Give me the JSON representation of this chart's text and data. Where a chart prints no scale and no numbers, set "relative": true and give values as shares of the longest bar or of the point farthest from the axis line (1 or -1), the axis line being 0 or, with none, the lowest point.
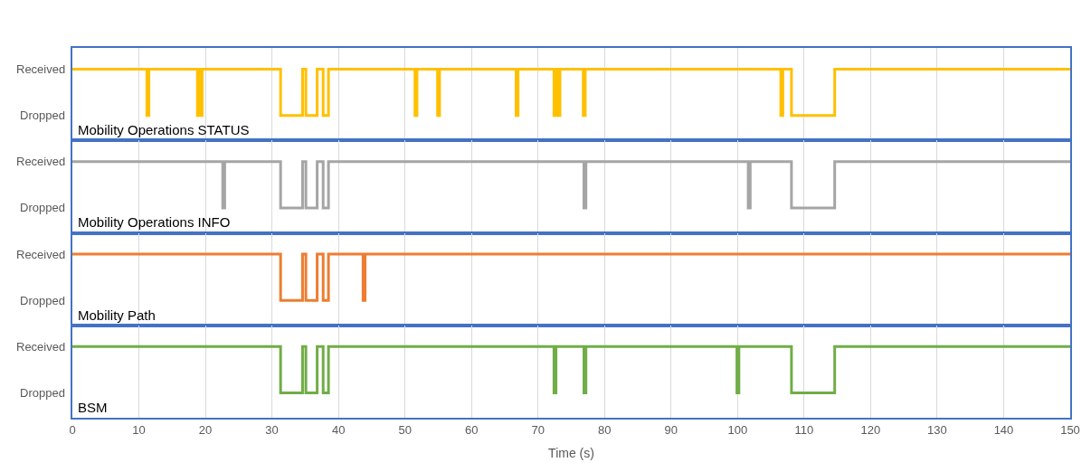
{
  "chart_data": [
    {
      "type": "step",
      "relative": true,
      "title": "Mobility Operations STATUS",
      "x": [
        0,
        11.2,
        11.5,
        18.8,
        19.0,
        19.3,
        19.5,
        31.3,
        34.6,
        35.1,
        36.8,
        37.7,
        38.5,
        51.5,
        51.8,
        54.9,
        55.2,
        66.7,
        67.0,
        72.4,
        72.7,
        73.0,
        73.3,
        76.8,
        77.1,
        106.5,
        106.8,
        108.1,
        114.6,
        150
      ],
      "series": [
        {
          "color": "#ffc000",
          "values": [
            1,
            0.35,
            1,
            0.35,
            1,
            0.35,
            1,
            0.35,
            1,
            0.35,
            1,
            0.35,
            1,
            0.35,
            1,
            0.35,
            1,
            0.35,
            1,
            0.35,
            1,
            0.35,
            1,
            0.35,
            1,
            0.35,
            1,
            0.35,
            1,
            1
          ]
        }
      ],
      "xlim": [
        0,
        150
      ],
      "xticks": [
        0,
        10,
        20,
        30,
        40,
        50,
        60,
        70,
        80,
        90,
        100,
        110,
        120,
        130,
        140,
        150
      ],
      "annotations": [
        "Received",
        "Dropped"
      ],
      "grid": "x",
      "tick_labels": false
    },
    {
      "type": "step",
      "relative": true,
      "title": "Mobility Operations INFO",
      "x": [
        0,
        22.6,
        22.9,
        31.3,
        34.6,
        35.1,
        36.8,
        37.7,
        38.5,
        76.9,
        77.2,
        101.6,
        101.9,
        108.1,
        114.6,
        150
      ],
      "series": [
        {
          "color": "#a5a5a5",
          "values": [
            1,
            0.35,
            1,
            0.35,
            1,
            0.35,
            1,
            0.35,
            1,
            0.35,
            1,
            0.35,
            1,
            0.35,
            1,
            1
          ]
        }
      ],
      "xlim": [
        0,
        150
      ],
      "xticks": [
        0,
        10,
        20,
        30,
        40,
        50,
        60,
        70,
        80,
        90,
        100,
        110,
        120,
        130,
        140,
        150
      ],
      "annotations": [
        "Received",
        "Dropped"
      ],
      "grid": "x",
      "tick_labels": false
    },
    {
      "type": "step",
      "relative": true,
      "title": "Mobility Path",
      "x": [
        0,
        31.3,
        34.6,
        35.1,
        36.8,
        37.7,
        38.5,
        43.7,
        44.0,
        150
      ],
      "series": [
        {
          "color": "#ed7d31",
          "values": [
            1,
            0.35,
            1,
            0.35,
            1,
            0.35,
            1,
            0.35,
            1,
            1
          ]
        }
      ],
      "xlim": [
        0,
        150
      ],
      "xticks": [
        0,
        10,
        20,
        30,
        40,
        50,
        60,
        70,
        80,
        90,
        100,
        110,
        120,
        130,
        140,
        150
      ],
      "annotations": [
        "Received",
        "Dropped"
      ],
      "grid": "x",
      "tick_labels": false
    },
    {
      "type": "step",
      "relative": true,
      "title": "BSM",
      "xlabel": "Time (s)",
      "x": [
        0,
        31.3,
        34.6,
        35.1,
        36.8,
        37.7,
        38.5,
        72.4,
        72.7,
        76.9,
        77.2,
        99.9,
        100.2,
        108.1,
        114.6,
        150
      ],
      "series": [
        {
          "color": "#70ad47",
          "values": [
            1,
            0.35,
            1,
            0.35,
            1,
            0.35,
            1,
            0.35,
            1,
            0.35,
            1,
            0.35,
            1,
            0.35,
            1,
            1
          ]
        }
      ],
      "xlim": [
        0,
        150
      ],
      "xticks": [
        0,
        10,
        20,
        30,
        40,
        50,
        60,
        70,
        80,
        90,
        100,
        110,
        120,
        130,
        140,
        150
      ],
      "annotations": [
        "Received",
        "Dropped"
      ],
      "grid": "x",
      "tick_labels": "x"
    }
  ]
}
